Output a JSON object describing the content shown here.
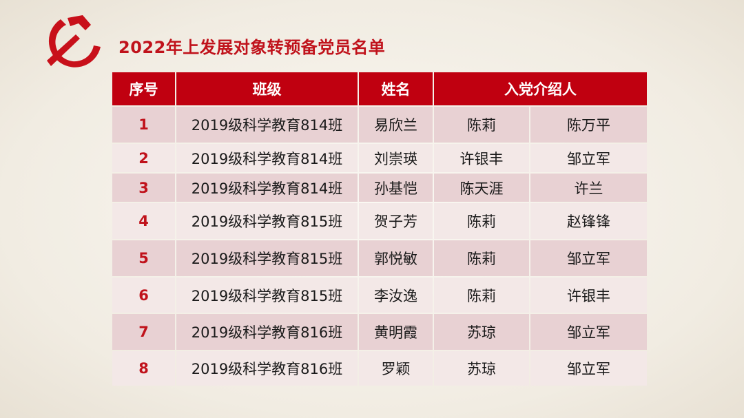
{
  "title": "2022年上发展对象转预备党员名单",
  "colors": {
    "accent": "#c00010",
    "row_odd": "#e8d1d3",
    "row_even": "#f3e8e7"
  },
  "logo_icon": "hammer-and-sickle-icon",
  "table": {
    "headers": [
      "序号",
      "班级",
      "姓名",
      "入党介绍人"
    ],
    "rows": [
      [
        "1",
        "2019级科学教育814班",
        "易欣兰",
        "陈莉",
        "陈万平"
      ],
      [
        "2",
        "2019级科学教育814班",
        "刘崇瑛",
        "许银丰",
        "邹立军"
      ],
      [
        "3",
        "2019级科学教育814班",
        "孙基恺",
        "陈天涯",
        "许兰"
      ],
      [
        "4",
        "2019级科学教育815班",
        "贺子芳",
        "陈莉",
        "赵锋锋"
      ],
      [
        "5",
        "2019级科学教育815班",
        "郭悦敏",
        "陈莉",
        "邹立军"
      ],
      [
        "6",
        "2019级科学教育815班",
        "李汝逸",
        "陈莉",
        "许银丰"
      ],
      [
        "7",
        "2019级科学教育816班",
        "黄明霞",
        "苏琼",
        "邹立军"
      ],
      [
        "8",
        "2019级科学教育816班",
        "罗颖",
        "苏琼",
        "邹立军"
      ]
    ]
  }
}
